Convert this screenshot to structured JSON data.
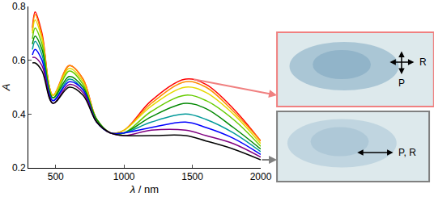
{
  "chart_data": {
    "type": "line",
    "x_label": "λ / nm",
    "y_label": "A",
    "x": [
      330,
      350,
      400,
      480,
      600,
      700,
      800,
      900,
      1000,
      1200,
      1450,
      1600,
      1800,
      2000
    ],
    "series": [
      {
        "color": "#ff0000",
        "values": [
          0.72,
          0.78,
          0.7,
          0.47,
          0.58,
          0.53,
          0.38,
          0.33,
          0.34,
          0.45,
          0.53,
          0.51,
          0.42,
          0.3
        ]
      },
      {
        "color": "#ff8c00",
        "values": [
          0.71,
          0.77,
          0.69,
          0.47,
          0.58,
          0.53,
          0.38,
          0.33,
          0.34,
          0.44,
          0.52,
          0.5,
          0.41,
          0.3
        ]
      },
      {
        "color": "#e6d800",
        "values": [
          0.7,
          0.75,
          0.68,
          0.47,
          0.57,
          0.52,
          0.38,
          0.33,
          0.34,
          0.43,
          0.5,
          0.48,
          0.4,
          0.29
        ]
      },
      {
        "color": "#66cc00",
        "values": [
          0.68,
          0.72,
          0.66,
          0.46,
          0.56,
          0.51,
          0.38,
          0.33,
          0.33,
          0.41,
          0.47,
          0.45,
          0.38,
          0.28
        ]
      },
      {
        "color": "#008800",
        "values": [
          0.66,
          0.69,
          0.64,
          0.46,
          0.54,
          0.5,
          0.38,
          0.33,
          0.33,
          0.39,
          0.44,
          0.42,
          0.35,
          0.27
        ]
      },
      {
        "color": "#009999",
        "values": [
          0.64,
          0.67,
          0.62,
          0.45,
          0.53,
          0.49,
          0.37,
          0.33,
          0.33,
          0.37,
          0.4,
          0.38,
          0.33,
          0.26
        ]
      },
      {
        "color": "#0000ff",
        "values": [
          0.62,
          0.64,
          0.6,
          0.45,
          0.52,
          0.49,
          0.37,
          0.33,
          0.33,
          0.35,
          0.37,
          0.35,
          0.31,
          0.25
        ]
      },
      {
        "color": "#800080",
        "values": [
          0.61,
          0.61,
          0.58,
          0.44,
          0.51,
          0.48,
          0.37,
          0.33,
          0.32,
          0.34,
          0.34,
          0.32,
          0.29,
          0.24
        ]
      },
      {
        "color": "#000000",
        "values": [
          0.59,
          0.59,
          0.56,
          0.44,
          0.5,
          0.47,
          0.37,
          0.33,
          0.32,
          0.32,
          0.32,
          0.3,
          0.27,
          0.23
        ]
      }
    ],
    "xlim": [
      300,
      2000
    ],
    "xticks": [
      500,
      1000,
      1500,
      2000
    ],
    "ylim": [
      0.2,
      0.8
    ],
    "yticks": [
      0.2,
      0.4,
      0.6,
      0.8
    ],
    "grid": false
  },
  "panels": [
    {
      "border_color": "#f08080",
      "arrow": "cross",
      "labels": [
        "R",
        "P"
      ]
    },
    {
      "border_color": "#808080",
      "arrow": "horizontal",
      "labels": [
        "P, R"
      ]
    }
  ]
}
